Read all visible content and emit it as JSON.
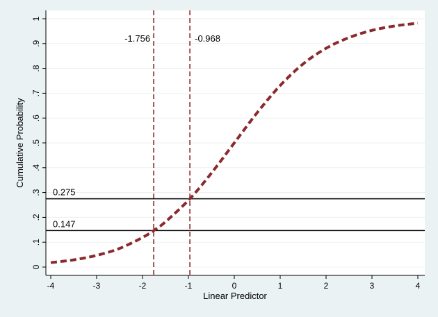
{
  "chart_data": {
    "type": "line",
    "xlabel": "Linear Predictor",
    "ylabel": "Cumulative Probability",
    "xlim": [
      -4,
      4
    ],
    "ylim": [
      0,
      1
    ],
    "xticks": [
      -4,
      -3,
      -2,
      -1,
      0,
      1,
      2,
      3,
      4
    ],
    "xtick_labels": [
      "-4",
      "-3",
      "-2",
      "-1",
      "0",
      "1",
      "2",
      "3",
      "4"
    ],
    "yticks": [
      0,
      0.1,
      0.2,
      0.3,
      0.4,
      0.5,
      0.6,
      0.7,
      0.8,
      0.9,
      1
    ],
    "ytick_labels": [
      "0",
      ".1",
      ".2",
      ".3",
      ".4",
      ".5",
      ".6",
      ".7",
      ".8",
      ".9",
      "1"
    ],
    "grid": true,
    "series": [
      {
        "style": "dashed",
        "x": [
          -4,
          -3.5,
          -3,
          -2.5,
          -2,
          -1.756,
          -1.5,
          -0.968,
          -0.5,
          0,
          0.5,
          1,
          1.5,
          2,
          2.5,
          3,
          3.5,
          4
        ],
        "y": [
          0.018,
          0.029,
          0.047,
          0.075,
          0.119,
          0.147,
          0.182,
          0.275,
          0.378,
          0.5,
          0.622,
          0.731,
          0.818,
          0.881,
          0.924,
          0.953,
          0.971,
          0.982
        ]
      }
    ],
    "vlines": [
      {
        "x": -1.756,
        "label": "-1.756"
      },
      {
        "x": -0.968,
        "label": "-0.968"
      }
    ],
    "hlines": [
      {
        "y": 0.275,
        "label": "0.275"
      },
      {
        "y": 0.147,
        "label": "0.147"
      }
    ],
    "colors": {
      "curve": "#8b2a2e",
      "vline": "#8b2a2e",
      "hline": "#000000",
      "grid": "#eef1f1",
      "plot_bg": "#ffffff",
      "page_bg": "#eaf2f3"
    }
  }
}
